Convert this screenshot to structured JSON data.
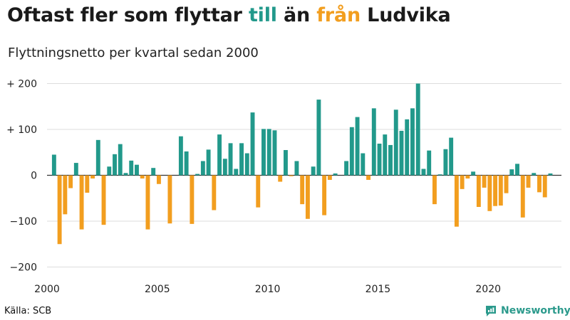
{
  "header": {
    "title_part1": "Oftast fler som flyttar ",
    "title_till": "till",
    "title_part2": " än ",
    "title_fran": "från",
    "title_part3": " Ludvika",
    "subtitle": "Flyttningsnetto per kvartal sedan 2000"
  },
  "footer": {
    "source": "Källa: SCB",
    "brand": "Newsworthy",
    "brand_icon": "newsworthy-logo-icon"
  },
  "colors": {
    "positive": "#22998b",
    "negative": "#f29e1f",
    "brand": "#2b9a8c"
  },
  "chart_data": {
    "type": "bar",
    "title": "Oftast fler som flyttar till än från Ludvika",
    "subtitle": "Flyttningsnetto per kvartal sedan 2000",
    "xlabel": "",
    "ylabel": "",
    "ylim": [
      -200,
      200
    ],
    "yticks": [
      200,
      100,
      0,
      -100,
      -200
    ],
    "ytick_labels": [
      "+ 200",
      "+ 100",
      "0",
      "−100",
      "−200"
    ],
    "xticks": [
      2000,
      2005,
      2010,
      2015,
      2020
    ],
    "xtick_labels": [
      "2000",
      "2005",
      "2010",
      "2015",
      "2020"
    ],
    "x_start": 2000,
    "quarters_per_year": 4,
    "grid": true,
    "values": [
      45,
      -150,
      -85,
      -28,
      27,
      -118,
      -38,
      -7,
      77,
      -108,
      19,
      46,
      68,
      5,
      32,
      23,
      -7,
      -118,
      16,
      -19,
      0,
      -105,
      0,
      85,
      52,
      -106,
      3,
      31,
      56,
      -76,
      89,
      36,
      70,
      14,
      70,
      48,
      137,
      -70,
      101,
      101,
      98,
      -14,
      55,
      -2,
      31,
      -63,
      -95,
      19,
      165,
      -87,
      -10,
      4,
      0,
      31,
      105,
      127,
      48,
      -10,
      146,
      69,
      89,
      66,
      143,
      97,
      122,
      146,
      200,
      14,
      54,
      -63,
      2,
      57,
      82,
      -112,
      -30,
      -7,
      8,
      -69,
      -27,
      -78,
      -67,
      -66,
      -39,
      13,
      25,
      -92,
      -27,
      5,
      -37,
      -48,
      4
    ]
  }
}
